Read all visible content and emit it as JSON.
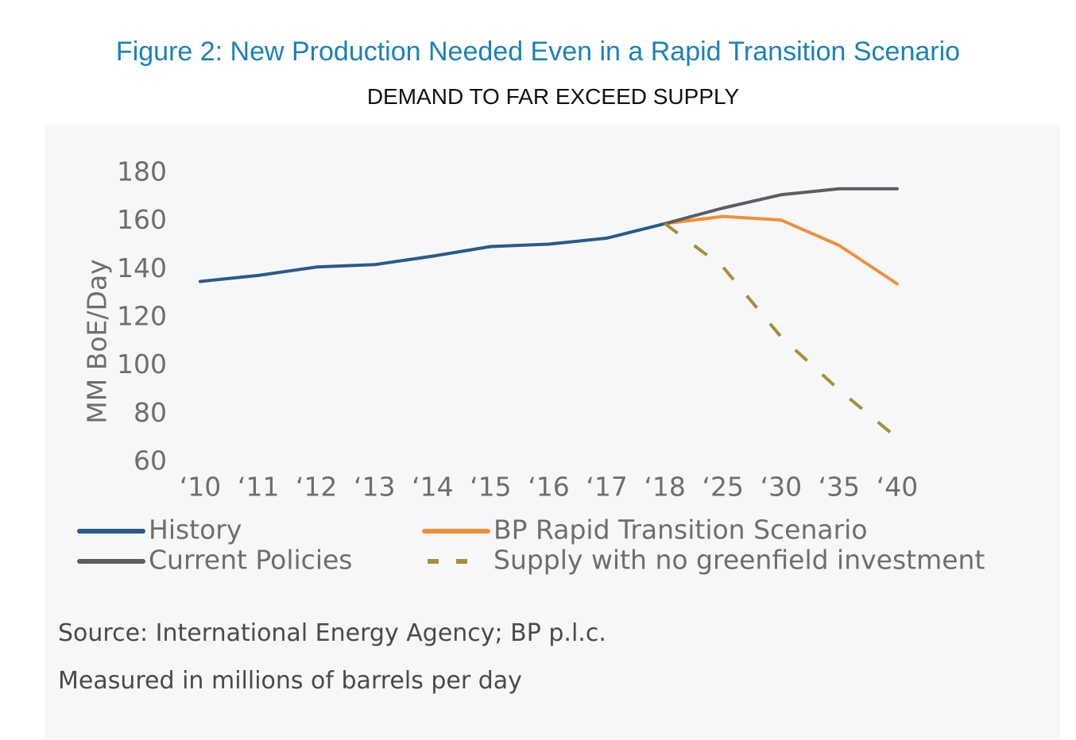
{
  "figure": {
    "title": "Figure 2: New Production Needed Even in a Rapid Transition Scenario",
    "subtitle": "DEMAND TO FAR EXCEED SUPPLY",
    "source": "Source: International Energy Agency; BP p.l.c.",
    "measure_note": "Measured in millions of barrels per day"
  },
  "chart_data": {
    "type": "line",
    "title": "",
    "xlabel": "",
    "ylabel": "MM BoE/Day",
    "categories": [
      "‘10",
      "‘11",
      "‘12",
      "‘13",
      "‘14",
      "‘15",
      "‘16",
      "‘17",
      "‘18",
      "‘25",
      "‘30",
      "‘35",
      "‘40"
    ],
    "ylim": [
      60,
      180
    ],
    "yticks": [
      180,
      160,
      140,
      120,
      100,
      80,
      60
    ],
    "grid": false,
    "legend_position": "bottom",
    "series": [
      {
        "name": "History",
        "color": "#2a5a8a",
        "style": "solid",
        "values": [
          135,
          137.5,
          141,
          142,
          145.5,
          149.5,
          150.5,
          153,
          159,
          null,
          null,
          null,
          null
        ]
      },
      {
        "name": "BP Rapid Transition Scenario",
        "color": "#f0903a",
        "style": "solid",
        "values": [
          null,
          null,
          null,
          null,
          null,
          null,
          null,
          null,
          159,
          162,
          160.5,
          150,
          134
        ]
      },
      {
        "name": "Current Policies",
        "color": "#5c5d60",
        "style": "solid",
        "values": [
          null,
          null,
          null,
          null,
          null,
          null,
          null,
          null,
          159,
          165.5,
          171,
          173.5,
          173.5
        ]
      },
      {
        "name": "Supply with no greenfield investment",
        "color": "#a4903a",
        "style": "dashed",
        "values": [
          null,
          null,
          null,
          null,
          null,
          null,
          null,
          null,
          159,
          141,
          112,
          90,
          70
        ]
      }
    ]
  }
}
